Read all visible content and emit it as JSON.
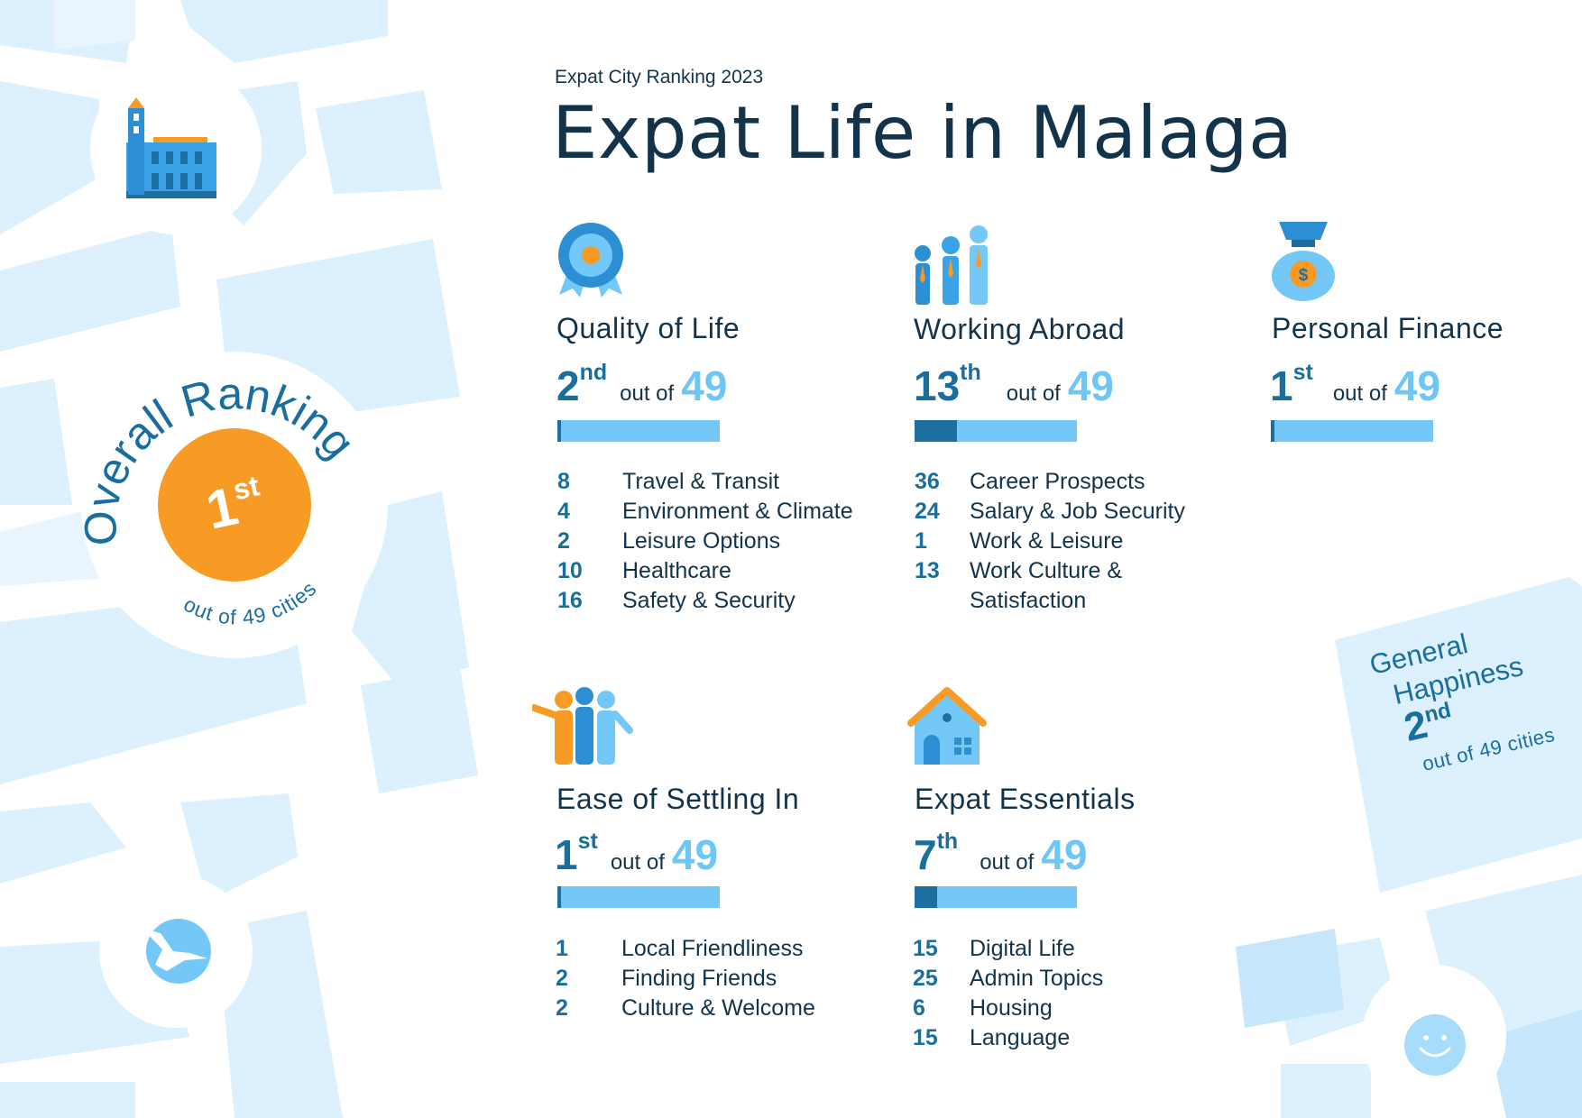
{
  "header": {
    "super_title": "Expat City Ranking 2023",
    "title": "Expat Life in Malaga"
  },
  "overall": {
    "label": "Overall Ranking",
    "rank": "1",
    "suffix": "st",
    "sub": "out of 49 cities",
    "badge_color": "#f89b24"
  },
  "general_happiness": {
    "label_line1": "General",
    "label_line2": "Happiness",
    "rank": "2",
    "suffix": "nd",
    "sub": "out of 49 cities"
  },
  "categories": {
    "quality_of_life": {
      "title": "Quality of Life",
      "rank": "2",
      "suffix": "nd",
      "out_of": "out of",
      "total": "49",
      "progress_fraction": 0.02,
      "items": [
        {
          "value": "8",
          "label": "Travel & Transit"
        },
        {
          "value": "4",
          "label": "Environment & Climate"
        },
        {
          "value": "2",
          "label": "Leisure Options"
        },
        {
          "value": "10",
          "label": "Healthcare"
        },
        {
          "value": "16",
          "label": "Safety & Security"
        }
      ]
    },
    "working_abroad": {
      "title": "Working Abroad",
      "rank": "13",
      "suffix": "th",
      "out_of": "out of",
      "total": "49",
      "progress_fraction": 0.26,
      "items": [
        {
          "value": "36",
          "label": "Career Prospects"
        },
        {
          "value": "24",
          "label": "Salary & Job Security"
        },
        {
          "value": "1",
          "label": "Work & Leisure"
        },
        {
          "value": "13",
          "label": "Work Culture &"
        },
        {
          "value": "",
          "label": "Satisfaction"
        }
      ]
    },
    "personal_finance": {
      "title": "Personal Finance",
      "rank": "1",
      "suffix": "st",
      "out_of": "out of",
      "total": "49",
      "progress_fraction": 0.02
    },
    "ease_of_settling_in": {
      "title": "Ease of Settling In",
      "rank": "1",
      "suffix": "st",
      "out_of": "out of",
      "total": "49",
      "progress_fraction": 0.02,
      "items": [
        {
          "value": "1",
          "label": "Local Friendliness"
        },
        {
          "value": "2",
          "label": "Finding Friends"
        },
        {
          "value": "2",
          "label": "Culture & Welcome"
        }
      ]
    },
    "expat_essentials": {
      "title": "Expat Essentials",
      "rank": "7",
      "suffix": "th",
      "out_of": "out of",
      "total": "49",
      "progress_fraction": 0.14,
      "items": [
        {
          "value": "15",
          "label": "Digital Life"
        },
        {
          "value": "25",
          "label": "Admin Topics"
        },
        {
          "value": "6",
          "label": "Housing"
        },
        {
          "value": "15",
          "label": "Language"
        }
      ]
    }
  },
  "icons": {
    "quality_of_life": "award-rosette-icon",
    "working_abroad": "business-people-icon",
    "personal_finance": "money-bag-icon",
    "ease_of_settling_in": "friends-group-icon",
    "expat_essentials": "house-icon",
    "landmark": "cathedral-icon",
    "bird": "stork-icon",
    "smiley": "smiley-face-icon",
    "currency_symbol": "$"
  },
  "colors": {
    "primary_dark": "#1a6e9e",
    "primary_light": "#74c8f8",
    "accent_orange": "#f89b24",
    "map_block": "#d8eefc",
    "text": "#12334a"
  }
}
